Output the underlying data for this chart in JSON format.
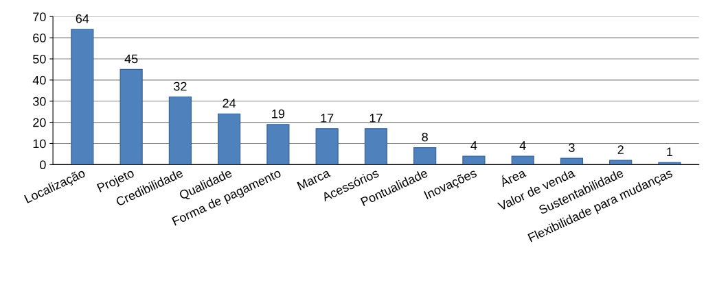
{
  "chart_data": {
    "type": "bar",
    "categories": [
      "Localização",
      "Projeto",
      "Credibilidade",
      "Qualidade",
      "Forma de pagamento",
      "Marca",
      "Acessórios",
      "Pontualidade",
      "Inovações",
      "Área",
      "Valor de venda",
      "Sustentabilidade",
      "Flexibilidade para mudanças"
    ],
    "values": [
      64,
      45,
      32,
      24,
      19,
      17,
      17,
      8,
      4,
      4,
      3,
      2,
      1
    ],
    "color": "#4f81bd",
    "ylim": [
      0,
      70
    ],
    "yticks": [
      0,
      10,
      20,
      30,
      40,
      50,
      60,
      70
    ],
    "grid": "y",
    "data_labels": true,
    "legend": false
  }
}
